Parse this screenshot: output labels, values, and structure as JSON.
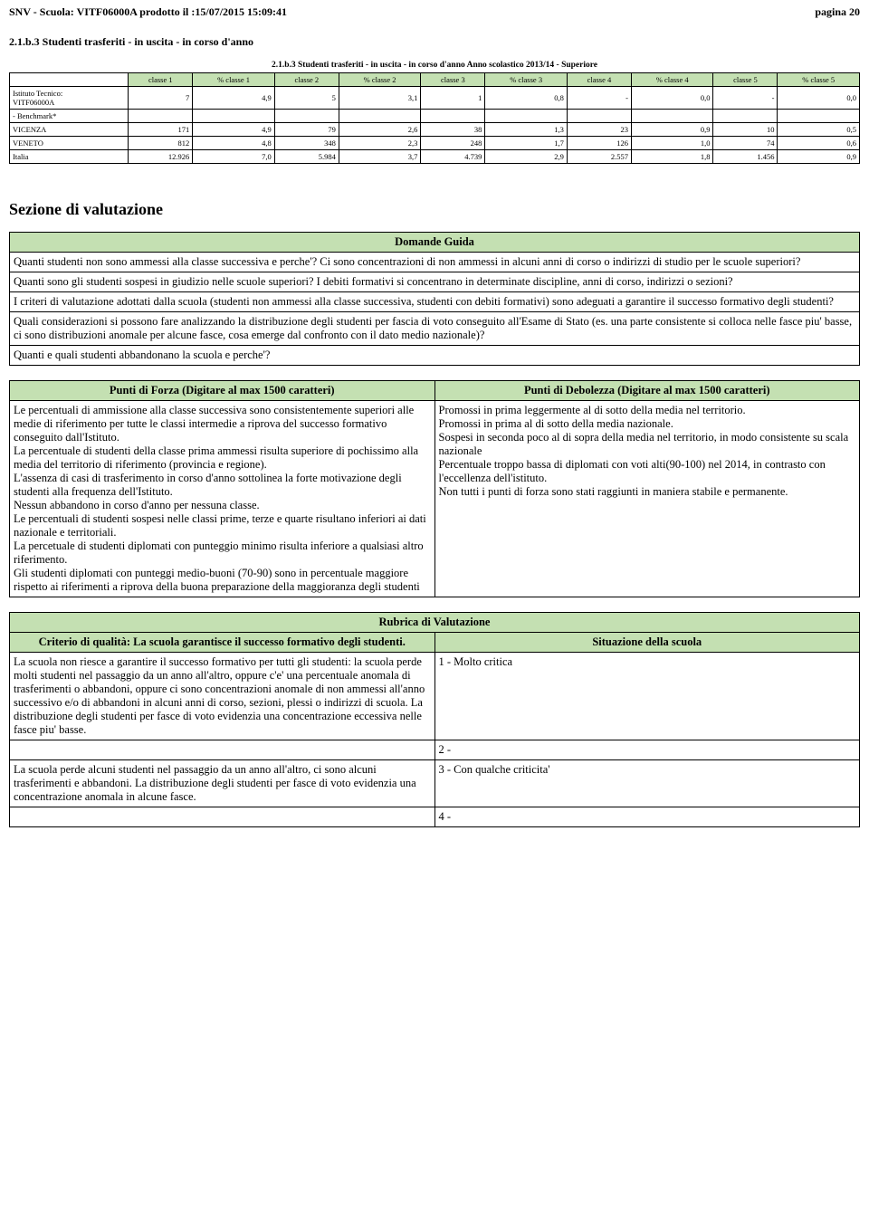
{
  "header": {
    "left": "SNV - Scuola: VITF06000A prodotto il :15/07/2015 15:09:41",
    "right": "pagina 20"
  },
  "section_213b": {
    "title": "2.1.b.3 Studenti trasferiti - in uscita - in corso d'anno",
    "table_caption": "2.1.b.3 Studenti trasferiti - in uscita - in corso d'anno Anno scolastico 2013/14 - Superiore",
    "columns": [
      "",
      "classe 1",
      "% classe 1",
      "classe 2",
      "% classe 2",
      "classe 3",
      "% classe 3",
      "classe 4",
      "% classe 4",
      "classe 5",
      "% classe 5"
    ],
    "rows": [
      {
        "label": "Istituto Tecnico:\nVITF06000A",
        "vals": [
          "7",
          "4,9",
          "5",
          "3,1",
          "1",
          "0,8",
          "-",
          "0,0",
          "-",
          "0,0"
        ]
      },
      {
        "label": "- Benchmark*",
        "vals": [
          "",
          "",
          "",
          "",
          "",
          "",
          "",
          "",
          "",
          ""
        ]
      },
      {
        "label": "VICENZA",
        "vals": [
          "171",
          "4,9",
          "79",
          "2,6",
          "38",
          "1,3",
          "23",
          "0,9",
          "10",
          "0,5"
        ]
      },
      {
        "label": "VENETO",
        "vals": [
          "812",
          "4,8",
          "348",
          "2,3",
          "248",
          "1,7",
          "126",
          "1,0",
          "74",
          "0,6"
        ]
      },
      {
        "label": "Italia",
        "vals": [
          "12.926",
          "7,0",
          "5.984",
          "3,7",
          "4.739",
          "2,9",
          "2.557",
          "1,8",
          "1.456",
          "0,9"
        ]
      }
    ],
    "header_bg": "#c4e0b2",
    "border_color": "#000000"
  },
  "valutazione_title": "Sezione di valutazione",
  "domande_guida": {
    "header": "Domande Guida",
    "items": [
      "Quanti studenti non sono ammessi alla classe successiva e perche'? Ci sono concentrazioni di non ammessi in alcuni anni di corso o indirizzi di studio per le scuole superiori?",
      "Quanti sono gli studenti sospesi in giudizio nelle scuole superiori? I debiti formativi si concentrano in determinate discipline, anni di corso, indirizzi o sezioni?",
      "I criteri di valutazione adottati dalla scuola (studenti non ammessi alla classe successiva, studenti con debiti formativi) sono adeguati a garantire il successo formativo degli studenti?",
      "Quali considerazioni si possono fare analizzando la distribuzione degli studenti per fascia di voto conseguito all'Esame di Stato (es. una parte consistente si colloca nelle fasce piu' basse, ci sono distribuzioni anomale per alcune fasce, cosa emerge dal confronto con il dato medio nazionale)?",
      "Quanti e quali studenti abbandonano la scuola e perche'?"
    ]
  },
  "punti": {
    "forza_header": "Punti di Forza (Digitare al max 1500 caratteri)",
    "debolezza_header": "Punti di Debolezza (Digitare al max 1500 caratteri)",
    "forza_text": "Le percentuali di ammissione alla classe successiva sono consistentemente superiori alle medie di riferimento per tutte le classi intermedie a riprova del successo formativo conseguito dall'Istituto.\nLa percentuale di studenti della classe prima ammessi risulta superiore di pochissimo alla media del territorio di riferimento (provincia e regione).\nL'assenza di casi di trasferimento in corso d'anno sottolinea la forte motivazione degli studenti alla frequenza dell'Istituto.\nNessun abbandono in corso d'anno per nessuna classe.\nLe percentuali di studenti sospesi nelle classi prime, terze e quarte risultano inferiori ai dati nazionale e territoriali.\nLa percetuale di studenti diplomati con punteggio minimo risulta inferiore a qualsiasi altro riferimento.\nGli studenti diplomati con punteggi medio-buoni (70-90) sono in percentuale maggiore rispetto ai riferimenti a riprova della buona preparazione della maggioranza degli studenti",
    "debolezza_text": "Promossi in prima leggermente al di sotto della media nel territorio.\nPromossi in prima al di sotto della media nazionale.\nSospesi in seconda poco al di sopra della media nel territorio, in modo consistente su scala nazionale\nPercentuale troppo bassa di diplomati con voti alti(90-100) nel 2014, in contrasto con l'eccellenza dell'istituto.\nNon tutti i punti di forza sono stati raggiunti in maniera stabile e permanente."
  },
  "rubrica": {
    "header": "Rubrica di Valutazione",
    "criterio_header": "Criterio di qualità: La scuola garantisce il successo formativo degli studenti.",
    "situazione_header": "Situazione della scuola",
    "rows": [
      {
        "criterio": "La scuola non riesce a garantire il successo formativo per tutti gli studenti: la scuola perde molti studenti nel passaggio da un anno all'altro, oppure c'e' una percentuale anomala di trasferimenti o abbandoni, oppure ci sono concentrazioni anomale di non ammessi all'anno successivo e/o di abbandoni in alcuni anni di corso, sezioni, plessi o indirizzi di scuola. La distribuzione degli studenti per fasce di voto evidenzia una concentrazione eccessiva nelle fasce piu' basse.",
        "situazione": "1 - Molto critica"
      },
      {
        "criterio": "",
        "situazione": "2 -"
      },
      {
        "criterio": "La scuola perde alcuni studenti nel passaggio da un anno all'altro, ci sono alcuni trasferimenti e abbandoni. La distribuzione degli studenti per fasce di voto evidenzia una concentrazione anomala in alcune fasce.",
        "situazione": "3 - Con qualche criticita'"
      },
      {
        "criterio": "",
        "situazione": "4 -"
      }
    ]
  }
}
